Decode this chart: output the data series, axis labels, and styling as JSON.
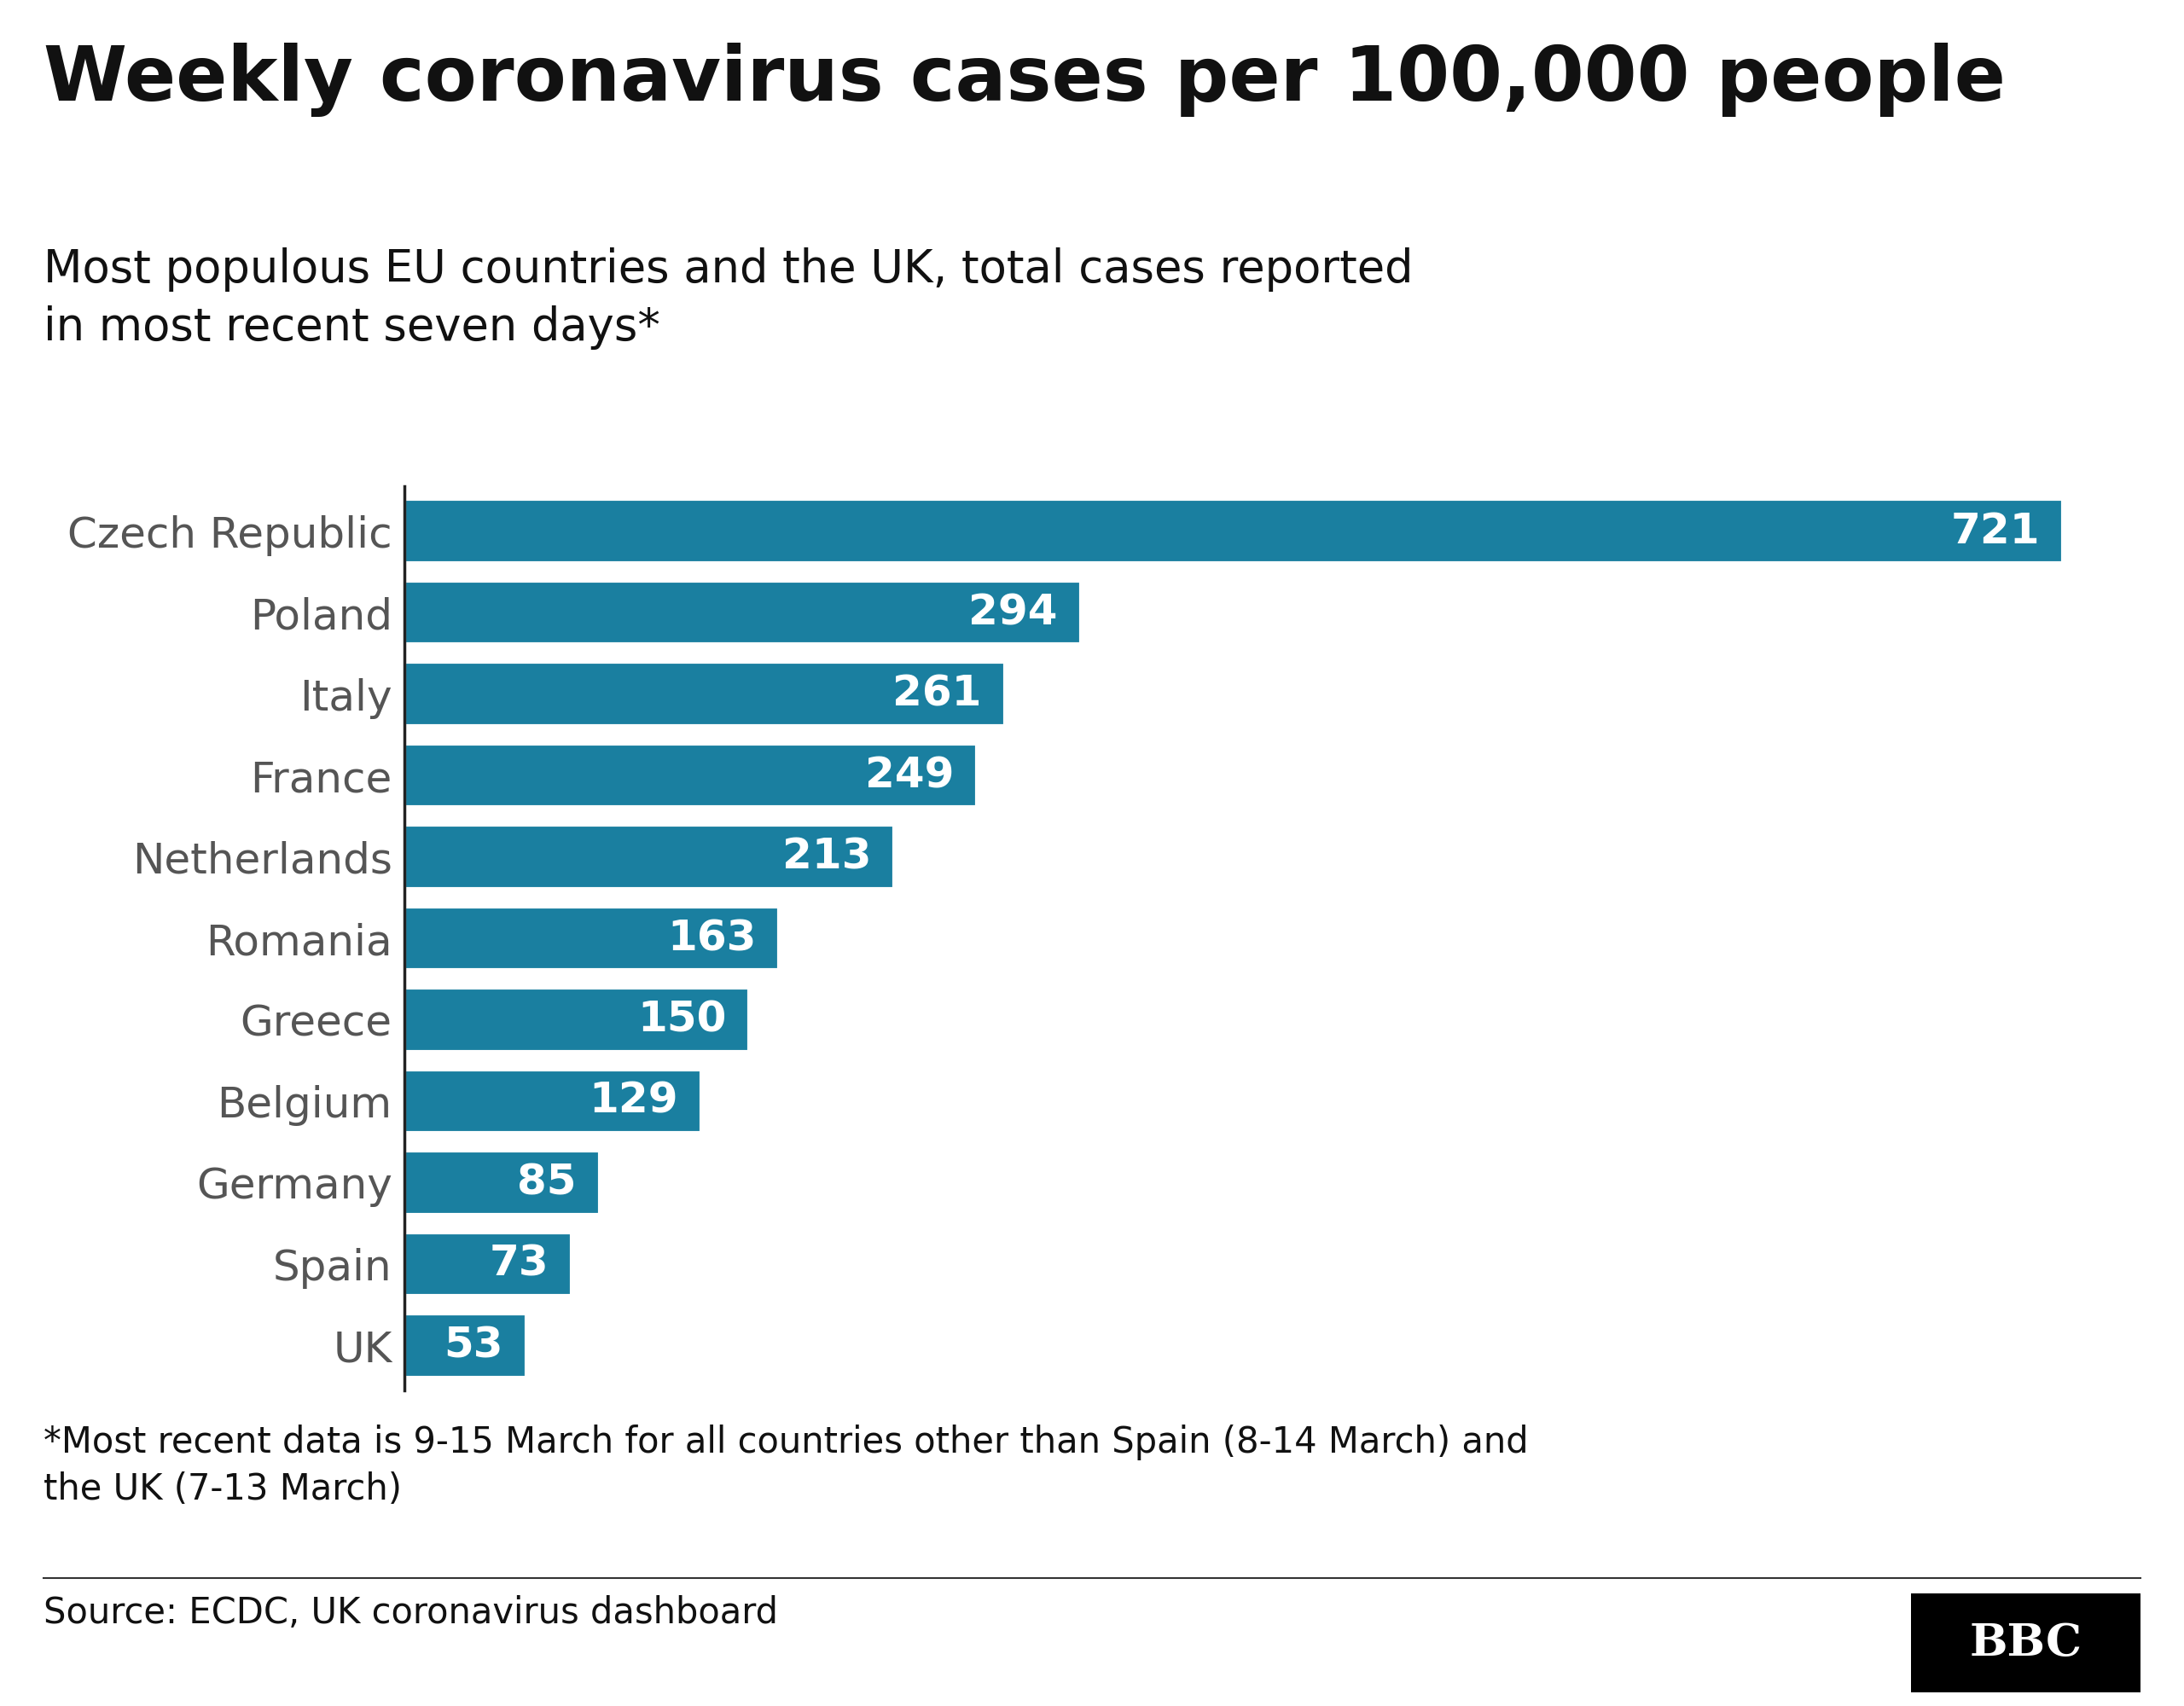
{
  "title": "Weekly coronavirus cases per 100,000 people",
  "subtitle": "Most populous EU countries and the UK, total cases reported\nin most recent seven days*",
  "countries": [
    "Czech Republic",
    "Poland",
    "Italy",
    "France",
    "Netherlands",
    "Romania",
    "Greece",
    "Belgium",
    "Germany",
    "Spain",
    "UK"
  ],
  "values": [
    721,
    294,
    261,
    249,
    213,
    163,
    150,
    129,
    85,
    73,
    53
  ],
  "bar_color": "#1a7fa0",
  "label_color": "#ffffff",
  "footnote": "*Most recent data is 9-15 March for all countries other than Spain (8-14 March) and\nthe UK (7-13 March)",
  "source": "Source: ECDC, UK coronavirus dashboard",
  "background_color": "#ffffff",
  "title_fontsize": 64,
  "subtitle_fontsize": 38,
  "label_fontsize": 36,
  "tick_fontsize": 36,
  "footnote_fontsize": 30,
  "source_fontsize": 30,
  "title_color": "#111111",
  "subtitle_color": "#111111",
  "tick_color": "#555555",
  "spine_color": "#222222",
  "bar_edgecolor": "white",
  "bar_linewidth": 3,
  "bar_height": 0.78
}
